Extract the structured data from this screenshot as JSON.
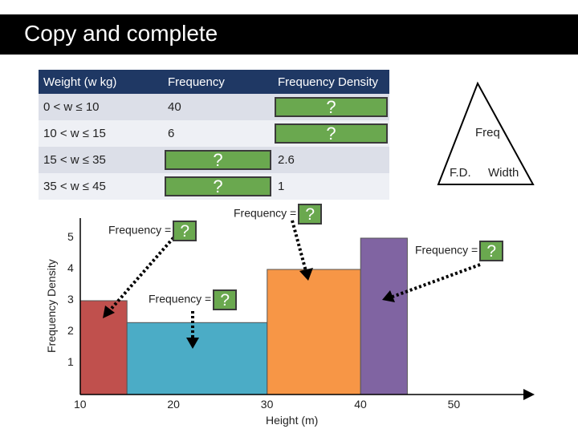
{
  "title": "Copy and complete",
  "table": {
    "headers": [
      "Weight (w kg)",
      "Frequency",
      "Frequency Density"
    ],
    "rows": [
      {
        "interval": "0 < w ≤ 10",
        "frequency": "40",
        "density": "?"
      },
      {
        "interval": "10 < w ≤ 15",
        "frequency": "6",
        "density": "?"
      },
      {
        "interval": "15 < w ≤ 35",
        "frequency": "?",
        "density": "2.6"
      },
      {
        "interval": "35 < w ≤ 45",
        "frequency": "?",
        "density": "1"
      }
    ]
  },
  "triangle": {
    "top": "Freq",
    "bottom_left": "F.D.",
    "bottom_right": "Width"
  },
  "annotations": {
    "a1": {
      "text": "Frequency =",
      "box": "?"
    },
    "a2": {
      "text": "Frequency =",
      "box": "?"
    },
    "a3": {
      "text": "Frequency =",
      "box": "?"
    },
    "a4": {
      "text": "Frequency =",
      "box": "?"
    }
  },
  "chart_data": {
    "type": "bar",
    "title": "",
    "xlabel": "Height (m)",
    "ylabel": "Frequency Density",
    "x_ticks": [
      "10",
      "20",
      "30",
      "40",
      "50"
    ],
    "y_ticks": [
      "1",
      "2",
      "3",
      "4",
      "5"
    ],
    "xlim": [
      10,
      55
    ],
    "ylim": [
      0,
      5
    ],
    "bars": [
      {
        "x0": 10,
        "x1": 15,
        "value": 3,
        "color": "#c0504d"
      },
      {
        "x0": 15,
        "x1": 30,
        "value": 2.3,
        "color": "#4bacc6"
      },
      {
        "x0": 30,
        "x1": 40,
        "value": 4,
        "color": "#f79646"
      },
      {
        "x0": 40,
        "x1": 45,
        "value": 5,
        "color": "#8064a2"
      }
    ]
  }
}
